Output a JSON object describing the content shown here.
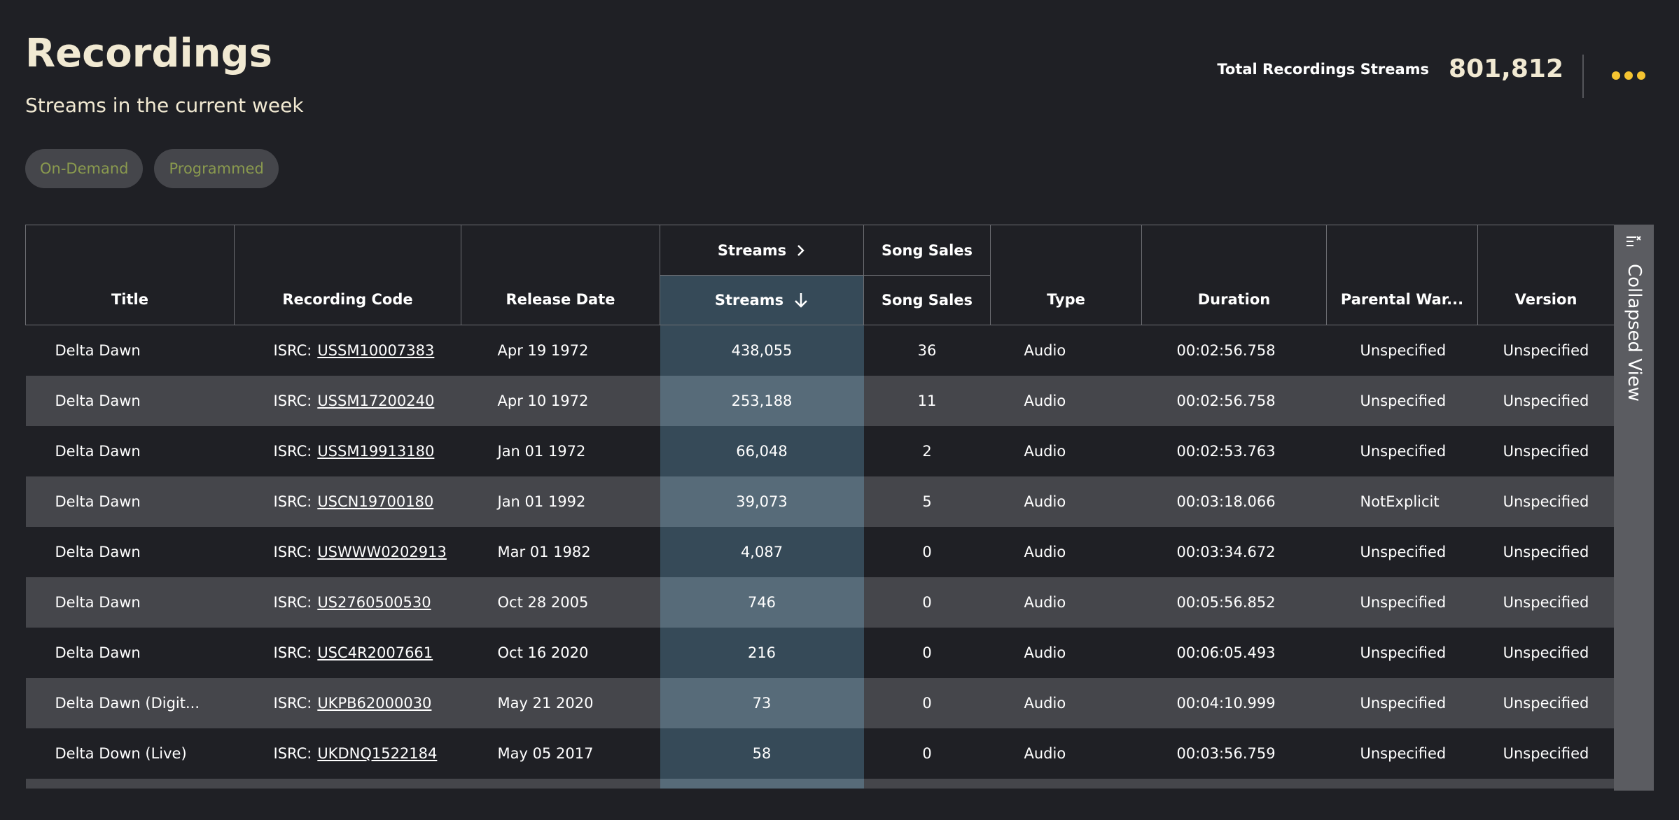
{
  "header": {
    "title": "Recordings",
    "subtitle": "Streams in the current week",
    "total_label": "Total Recordings Streams",
    "total_value": "801,812"
  },
  "filters": [
    "On-Demand",
    "Programmed"
  ],
  "table": {
    "group_headers": {
      "streams": "Streams",
      "song_sales": "Song Sales"
    },
    "columns": {
      "title": "Title",
      "code": "Recording Code",
      "release": "Release Date",
      "streams": "Streams",
      "song_sales": "Song Sales",
      "type": "Type",
      "duration": "Duration",
      "parental": "Parental War...",
      "version": "Version"
    },
    "isrc_prefix": "ISRC:",
    "rows": [
      {
        "title": "Delta Dawn",
        "code": "USSM10007383",
        "release": "Apr 19 1972",
        "streams": "438,055",
        "sales": "36",
        "type": "Audio",
        "duration": "00:02:56.758",
        "parental": "Unspecified",
        "version": "Unspecified"
      },
      {
        "title": "Delta Dawn",
        "code": "USSM17200240",
        "release": "Apr 10 1972",
        "streams": "253,188",
        "sales": "11",
        "type": "Audio",
        "duration": "00:02:56.758",
        "parental": "Unspecified",
        "version": "Unspecified"
      },
      {
        "title": "Delta Dawn",
        "code": "USSM19913180",
        "release": "Jan 01 1972",
        "streams": "66,048",
        "sales": "2",
        "type": "Audio",
        "duration": "00:02:53.763",
        "parental": "Unspecified",
        "version": "Unspecified"
      },
      {
        "title": "Delta Dawn",
        "code": "USCN19700180",
        "release": "Jan 01 1992",
        "streams": "39,073",
        "sales": "5",
        "type": "Audio",
        "duration": "00:03:18.066",
        "parental": "NotExplicit",
        "version": "Unspecified"
      },
      {
        "title": "Delta Dawn",
        "code": "USWWW0202913",
        "release": "Mar 01 1982",
        "streams": "4,087",
        "sales": "0",
        "type": "Audio",
        "duration": "00:03:34.672",
        "parental": "Unspecified",
        "version": "Unspecified"
      },
      {
        "title": "Delta Dawn",
        "code": "US2760500530",
        "release": "Oct 28 2005",
        "streams": "746",
        "sales": "0",
        "type": "Audio",
        "duration": "00:05:56.852",
        "parental": "Unspecified",
        "version": "Unspecified"
      },
      {
        "title": "Delta Dawn",
        "code": "USC4R2007661",
        "release": "Oct 16 2020",
        "streams": "216",
        "sales": "0",
        "type": "Audio",
        "duration": "00:06:05.493",
        "parental": "Unspecified",
        "version": "Unspecified"
      },
      {
        "title": "Delta Dawn (Digit...",
        "code": "UKPB62000030",
        "release": "May 21 2020",
        "streams": "73",
        "sales": "0",
        "type": "Audio",
        "duration": "00:04:10.999",
        "parental": "Unspecified",
        "version": "Unspecified"
      },
      {
        "title": "Delta Down (Live)",
        "code": "UKDNQ1522184",
        "release": "May 05 2017",
        "streams": "58",
        "sales": "0",
        "type": "Audio",
        "duration": "00:03:56.759",
        "parental": "Unspecified",
        "version": "Unspecified"
      }
    ]
  },
  "side_panel": {
    "label": "Collapsed View",
    "icon": "collapse-list-icon"
  },
  "icons": {
    "more": "more-dots-icon",
    "expand": "chevron-right-icon",
    "sort": "arrow-down-icon"
  },
  "colors": {
    "accent": "#f5c431",
    "title": "#f1e9d2",
    "chip_text": "#8a9a4e",
    "active_column": "#364a58"
  }
}
